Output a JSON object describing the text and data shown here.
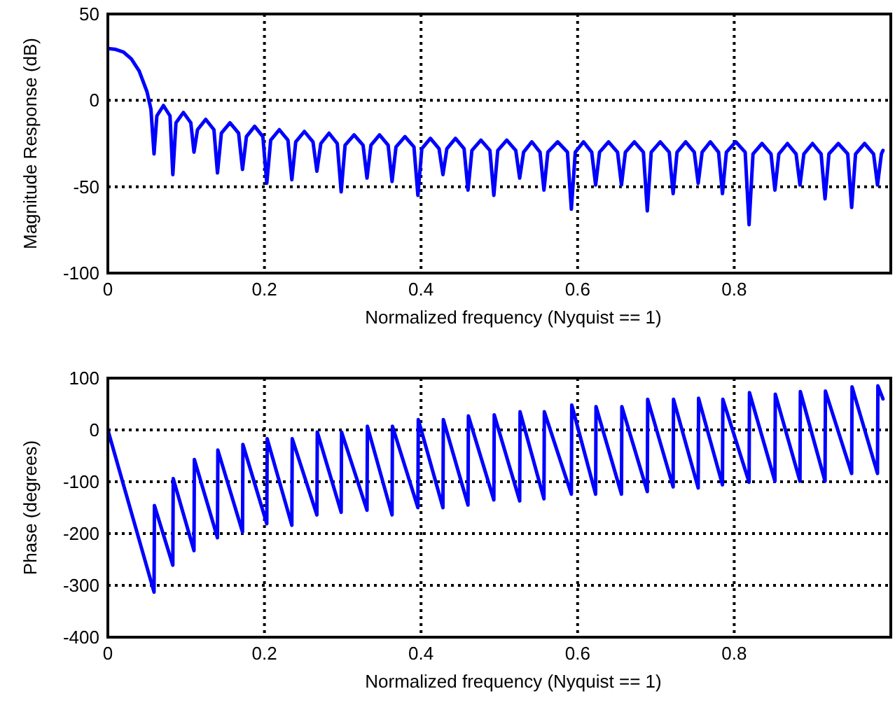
{
  "chart_data": [
    {
      "type": "line",
      "xlabel": "Normalized frequency (Nyquist == 1)",
      "ylabel": "Magnitude Response (dB)",
      "xlim": [
        0,
        1
      ],
      "ylim": [
        -100,
        50
      ],
      "xticks": [
        0,
        0.2,
        0.4,
        0.6,
        0.8
      ],
      "yticks": [
        -100,
        -50,
        0,
        50
      ],
      "grid": true,
      "line_style": "solid",
      "series": [
        {
          "color": "#0000ff",
          "x": [
            0,
            0.01,
            0.02,
            0.03,
            0.04,
            0.05,
            0.055,
            0.059,
            0.0626,
            0.071,
            0.0794,
            0.083,
            0.087,
            0.0965,
            0.106,
            0.11,
            0.1145,
            0.125,
            0.1355,
            0.14,
            0.145,
            0.156,
            0.167,
            0.172,
            0.177,
            0.1875,
            0.198,
            0.203,
            0.208,
            0.219,
            0.23,
            0.235,
            0.24,
            0.251,
            0.262,
            0.267,
            0.272,
            0.2825,
            0.293,
            0.298,
            0.303,
            0.3145,
            0.326,
            0.331,
            0.336,
            0.347,
            0.358,
            0.363,
            0.368,
            0.3795,
            0.391,
            0.396,
            0.401,
            0.412,
            0.423,
            0.428,
            0.433,
            0.444,
            0.455,
            0.46,
            0.465,
            0.4765,
            0.488,
            0.493,
            0.498,
            0.5095,
            0.521,
            0.526,
            0.531,
            0.5415,
            0.552,
            0.557,
            0.562,
            0.5745,
            0.587,
            0.592,
            0.597,
            0.6075,
            0.618,
            0.623,
            0.628,
            0.6395,
            0.651,
            0.656,
            0.661,
            0.6725,
            0.684,
            0.689,
            0.694,
            0.7055,
            0.717,
            0.722,
            0.727,
            0.738,
            0.749,
            0.754,
            0.759,
            0.7695,
            0.78,
            0.785,
            0.79,
            0.802,
            0.814,
            0.819,
            0.824,
            0.8355,
            0.847,
            0.852,
            0.857,
            0.868,
            0.879,
            0.884,
            0.889,
            0.9,
            0.911,
            0.916,
            0.921,
            0.933,
            0.945,
            0.95,
            0.955,
            0.9665,
            0.978,
            0.983,
            0.988,
            0.99
          ],
          "values": [
            30,
            29.5,
            28,
            24,
            17,
            5,
            -5,
            -31,
            -9,
            -3,
            -9,
            -43,
            -13,
            -7,
            -13,
            -30,
            -17,
            -11,
            -17,
            -42,
            -19,
            -13,
            -19,
            -40,
            -21,
            -15,
            -21,
            -48,
            -23,
            -17,
            -23,
            -46,
            -24,
            -18,
            -24,
            -41,
            -25,
            -19,
            -25,
            -53,
            -26,
            -20,
            -26,
            -45,
            -26,
            -20,
            -26,
            -47,
            -27,
            -21,
            -27,
            -55,
            -28,
            -22,
            -28,
            -43,
            -28,
            -22,
            -28,
            -52,
            -29,
            -23,
            -29,
            -55,
            -29,
            -23,
            -29,
            -45,
            -30,
            -24,
            -30,
            -52,
            -30,
            -24,
            -30,
            -63,
            -30,
            -24,
            -30,
            -49,
            -30,
            -24,
            -30,
            -49,
            -30,
            -24,
            -30,
            -64,
            -30,
            -24,
            -30,
            -54,
            -30,
            -24,
            -30,
            -48,
            -30,
            -24,
            -30,
            -54,
            -30,
            -24,
            -30,
            -72,
            -31,
            -25,
            -31,
            -52,
            -31,
            -25,
            -31,
            -49,
            -31,
            -25,
            -31,
            -57,
            -31,
            -25,
            -31,
            -62,
            -31,
            -25,
            -31,
            -49,
            -31,
            -29
          ]
        }
      ]
    },
    {
      "type": "line",
      "xlabel": "Normalized frequency (Nyquist == 1)",
      "ylabel": "Phase (degrees)",
      "xlim": [
        0,
        1
      ],
      "ylim": [
        -400,
        100
      ],
      "xticks": [
        0,
        0.2,
        0.4,
        0.6,
        0.8
      ],
      "yticks": [
        -400,
        -300,
        -200,
        -100,
        0,
        100
      ],
      "grid": true,
      "line_style": "solid",
      "series": [
        {
          "color": "#0000ff",
          "x": [
            0,
            0.059,
            0.0595,
            0.083,
            0.0835,
            0.11,
            0.1105,
            0.14,
            0.1405,
            0.172,
            0.1725,
            0.203,
            0.2035,
            0.235,
            0.2355,
            0.267,
            0.2675,
            0.298,
            0.2985,
            0.331,
            0.3315,
            0.363,
            0.3635,
            0.396,
            0.3965,
            0.428,
            0.4285,
            0.46,
            0.4605,
            0.493,
            0.4935,
            0.526,
            0.5265,
            0.557,
            0.5575,
            0.592,
            0.5925,
            0.623,
            0.6235,
            0.656,
            0.6565,
            0.689,
            0.6895,
            0.722,
            0.7225,
            0.754,
            0.7545,
            0.785,
            0.7855,
            0.819,
            0.8195,
            0.852,
            0.8525,
            0.884,
            0.8845,
            0.916,
            0.9165,
            0.95,
            0.9505,
            0.983,
            0.9835,
            0.99
          ],
          "values": [
            0,
            -313,
            -146,
            -261,
            -94,
            -233,
            -57,
            -208,
            -39,
            -197,
            -28,
            -181,
            -17,
            -184,
            -17,
            -164,
            -4,
            -159,
            -4,
            -155,
            7,
            -164,
            7,
            -150,
            20,
            -150,
            20,
            -145,
            27,
            -135,
            29,
            -137,
            35,
            -133,
            35,
            -124,
            48,
            -124,
            45,
            -124,
            45,
            -119,
            59,
            -110,
            59,
            -112,
            61,
            -106,
            59,
            -101,
            72,
            -99,
            69,
            -99,
            74,
            -99,
            75,
            -84,
            83,
            -84,
            85,
            60
          ]
        }
      ]
    }
  ]
}
